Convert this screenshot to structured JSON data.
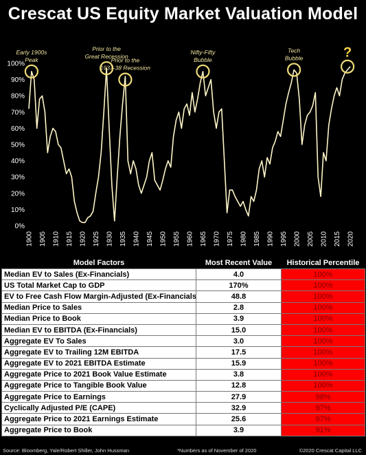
{
  "title": "Crescat US Equity Market Valuation Model",
  "chart_data": {
    "type": "line",
    "x": [
      1900,
      1901,
      1902,
      1903,
      1904,
      1905,
      1906,
      1907,
      1908,
      1909,
      1910,
      1911,
      1912,
      1913,
      1914,
      1915,
      1916,
      1917,
      1918,
      1919,
      1920,
      1921,
      1922,
      1923,
      1924,
      1925,
      1926,
      1927,
      1928,
      1929,
      1930,
      1931,
      1932,
      1933,
      1934,
      1935,
      1936,
      1937,
      1938,
      1939,
      1940,
      1941,
      1942,
      1943,
      1944,
      1945,
      1946,
      1947,
      1948,
      1949,
      1950,
      1951,
      1952,
      1953,
      1954,
      1955,
      1956,
      1957,
      1958,
      1959,
      1960,
      1961,
      1962,
      1963,
      1964,
      1965,
      1966,
      1967,
      1968,
      1969,
      1970,
      1971,
      1972,
      1973,
      1974,
      1975,
      1976,
      1977,
      1978,
      1979,
      1980,
      1981,
      1982,
      1983,
      1984,
      1985,
      1986,
      1987,
      1988,
      1989,
      1990,
      1991,
      1992,
      1993,
      1994,
      1995,
      1996,
      1997,
      1998,
      1999,
      2000,
      2001,
      2002,
      2003,
      2004,
      2005,
      2006,
      2007,
      2008,
      2009,
      2010,
      2011,
      2012,
      2013,
      2014,
      2015,
      2016,
      2017,
      2018,
      2019,
      2020
    ],
    "y": [
      72,
      95,
      90,
      60,
      78,
      80,
      70,
      45,
      55,
      60,
      58,
      50,
      48,
      40,
      32,
      35,
      30,
      15,
      8,
      3,
      2,
      2,
      5,
      6,
      9,
      20,
      30,
      45,
      70,
      97,
      60,
      25,
      3,
      30,
      55,
      75,
      92,
      40,
      32,
      40,
      35,
      25,
      20,
      25,
      30,
      40,
      45,
      28,
      25,
      22,
      28,
      35,
      40,
      36,
      55,
      65,
      70,
      60,
      72,
      75,
      68,
      82,
      70,
      78,
      88,
      95,
      80,
      85,
      90,
      70,
      60,
      70,
      72,
      40,
      8,
      22,
      22,
      18,
      15,
      12,
      15,
      10,
      6,
      18,
      15,
      22,
      35,
      40,
      30,
      42,
      38,
      48,
      52,
      58,
      55,
      65,
      75,
      82,
      88,
      96,
      94,
      78,
      50,
      62,
      68,
      70,
      74,
      82,
      30,
      18,
      45,
      40,
      62,
      72,
      80,
      85,
      80,
      90,
      94,
      96,
      98
    ],
    "xlim": [
      1900,
      2020
    ],
    "ylim": [
      0,
      100
    ],
    "x_ticks": [
      "1900",
      "1905",
      "1910",
      "1915",
      "1920",
      "1925",
      "1930",
      "1935",
      "1940",
      "1945",
      "1950",
      "1955",
      "1960",
      "1965",
      "1970",
      "1975",
      "1980",
      "1985",
      "1990",
      "1995",
      "2000",
      "2005",
      "2010",
      "2015",
      "2020"
    ],
    "y_ticks": [
      "0%",
      "10%",
      "20%",
      "30%",
      "40%",
      "50%",
      "60%",
      "70%",
      "80%",
      "90%",
      "100%"
    ],
    "line_color": "#fff6c8",
    "circle_color": "#f0dc78",
    "grid": false,
    "annotations": [
      {
        "text_lines": [
          "Early 1900s",
          "Peak"
        ],
        "x": 1901,
        "y": 95
      },
      {
        "text_lines": [
          "Prior to the",
          "Great Recession"
        ],
        "x": 1929,
        "y": 97
      },
      {
        "text_lines": [
          "Prior to the",
          "1937-38 Recession"
        ],
        "x": 1936,
        "y": 90
      },
      {
        "text_lines": [
          "Nifty-Fifty",
          "Bubble"
        ],
        "x": 1965,
        "y": 95
      },
      {
        "text_lines": [
          "Tech",
          "Bubble"
        ],
        "x": 1999,
        "y": 96
      },
      {
        "text_lines": [
          "?"
        ],
        "x": 2019,
        "y": 98
      }
    ]
  },
  "table": {
    "headers": [
      "Model Factors",
      "Most Recent Value",
      "Historical Percentile"
    ],
    "rows": [
      {
        "factor": "Median EV to Sales (Ex-Financials)",
        "value": "4.0",
        "pct": "100%"
      },
      {
        "factor": "US Total Market Cap to GDP",
        "value": "170%",
        "pct": "100%"
      },
      {
        "factor": "EV to Free Cash Flow Margin-Adjusted (Ex-Financials)",
        "value": "48.8",
        "pct": "100%"
      },
      {
        "factor": "Median Price to Sales",
        "value": "2.8",
        "pct": "100%"
      },
      {
        "factor": "Median Price to Book",
        "value": "3.9",
        "pct": "100%"
      },
      {
        "factor": "Median EV to EBITDA (Ex-Financials)",
        "value": "15.0",
        "pct": "100%"
      },
      {
        "factor": "Aggregate EV To Sales",
        "value": "3.0",
        "pct": "100%"
      },
      {
        "factor": "Aggregate EV to Trailing 12M EBITDA",
        "value": "17.5",
        "pct": "100%"
      },
      {
        "factor": "Aggregate EV to 2021 EBITDA Estimate",
        "value": "15.9",
        "pct": "100%"
      },
      {
        "factor": "Aggregate Price to 2021 Book Value Estimate",
        "value": "3.8",
        "pct": "100%"
      },
      {
        "factor": "Aggregate Price to Tangible Book Value",
        "value": "12.8",
        "pct": "100%"
      },
      {
        "factor": "Aggregate Price to Earnings",
        "value": "27.9",
        "pct": "98%"
      },
      {
        "factor": "Cyclically Adjusted P/E (CAPE)",
        "value": "32.9",
        "pct": "97%"
      },
      {
        "factor": "Aggregate Price to 2021 Earnings Estimate",
        "value": "25.6",
        "pct": "97%"
      },
      {
        "factor": "Aggregate Price to Book",
        "value": "3.9",
        "pct": "91%"
      }
    ]
  },
  "footer": {
    "source": "Source: Bloomberg, Yale/Robert Shiller, John Hussman",
    "note": "*Numbers as of November of 2020",
    "copyright": "©2020 Crescat Capital LLC"
  }
}
